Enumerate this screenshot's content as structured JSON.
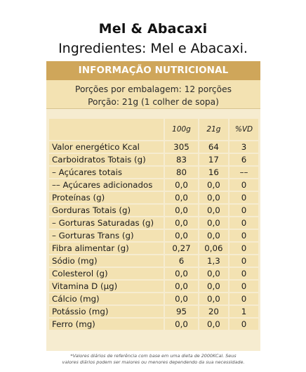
{
  "title": "Mel & Abacaxi",
  "ingredients": "Ingredientes: Mel e Abacaxi.",
  "panel": {
    "header": "INFORMAÇÃO NUTRICIONAL",
    "portions_line1": "Porções por embalagem: 12 porções",
    "portions_line2": "Porção: 21g (1 colher de sopa)"
  },
  "table": {
    "columns": [
      "100g",
      "21g",
      "%VD"
    ],
    "rows": [
      {
        "label": "Valor energético Kcal",
        "v100": "305",
        "v21": "64",
        "vd": "3"
      },
      {
        "label": "Carboidratos Totais (g)",
        "v100": "83",
        "v21": "17",
        "vd": "6"
      },
      {
        "label": "– Açúcares totais",
        "v100": "80",
        "v21": "16",
        "vd": "––"
      },
      {
        "label": "–– Açúcares adicionados",
        "v100": "0,0",
        "v21": "0,0",
        "vd": "0"
      },
      {
        "label": "Proteínas (g)",
        "v100": "0,0",
        "v21": "0,0",
        "vd": "0"
      },
      {
        "label": "Gorduras Totais (g)",
        "v100": "0,0",
        "v21": "0,0",
        "vd": "0"
      },
      {
        "label": "– Gorturas Saturadas (g)",
        "v100": "0,0",
        "v21": "0,0",
        "vd": "0"
      },
      {
        "label": "– Gorturas Trans (g)",
        "v100": "0,0",
        "v21": "0,0",
        "vd": "0"
      },
      {
        "label": "Fibra alimentar (g)",
        "v100": "0,27",
        "v21": "0,06",
        "vd": "0"
      },
      {
        "label": "Sódio (mg)",
        "v100": "6",
        "v21": "1,3",
        "vd": "0"
      },
      {
        "label": "Colesterol (g)",
        "v100": "0,0",
        "v21": "0,0",
        "vd": "0"
      },
      {
        "label": "Vitamina D (µg)",
        "v100": "0,0",
        "v21": "0,0",
        "vd": "0"
      },
      {
        "label": "Cálcio (mg)",
        "v100": "0,0",
        "v21": "0,0",
        "vd": "0"
      },
      {
        "label": "Potássio (mg)",
        "v100": "95",
        "v21": "20",
        "vd": "1"
      },
      {
        "label": "Ferro (mg)",
        "v100": "0,0",
        "v21": "0,0",
        "vd": "0"
      }
    ]
  },
  "footnote_line1": "*Valores diários de referência com base em uma dieta de 2000KCal. Seus",
  "footnote_line2": "valores diários podem ser maiores ou menores dependendo da sua necessidade."
}
